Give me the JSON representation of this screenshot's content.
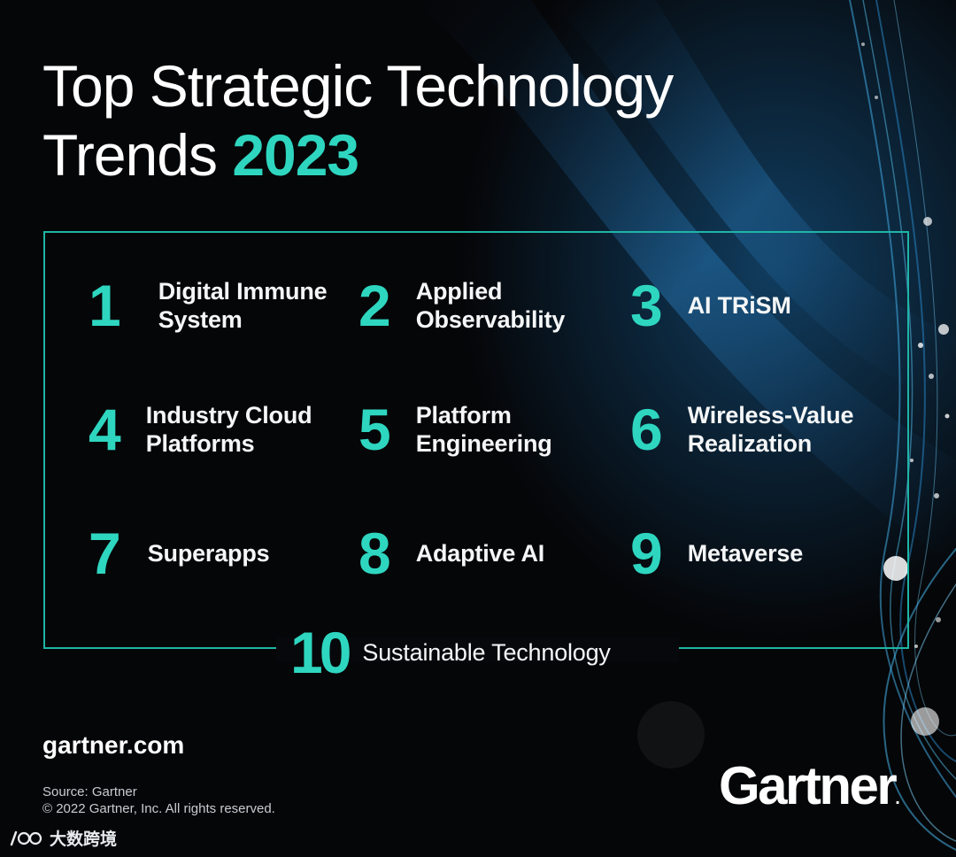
{
  "header": {
    "title_line1": "Top Strategic Technology",
    "title_line2_prefix": "Trends",
    "title_year": "2023"
  },
  "trends": [
    {
      "number": "1",
      "label_line1": "Digital Immune",
      "label_line2": "System"
    },
    {
      "number": "2",
      "label_line1": "Applied",
      "label_line2": "Observability"
    },
    {
      "number": "3",
      "label_line1": "AI TRiSM",
      "label_line2": ""
    },
    {
      "number": "4",
      "label_line1": "Industry Cloud",
      "label_line2": "Platforms"
    },
    {
      "number": "5",
      "label_line1": "Platform",
      "label_line2": "Engineering"
    },
    {
      "number": "6",
      "label_line1": "Wireless-Value",
      "label_line2": "Realization"
    },
    {
      "number": "7",
      "label_line1": "Superapps",
      "label_line2": ""
    },
    {
      "number": "8",
      "label_line1": "Adaptive AI",
      "label_line2": ""
    },
    {
      "number": "9",
      "label_line1": "Metaverse",
      "label_line2": ""
    },
    {
      "number": "10",
      "label_line1": "Sustainable Technology",
      "label_line2": ""
    }
  ],
  "footer": {
    "website": "gartner.com",
    "source": "Source: Gartner",
    "copyright": "© 2022 Gartner, Inc. All rights reserved.",
    "logo_text": "Gartner",
    "logo_mark": ".",
    "watermark_text": "大数跨境",
    "watermark_icon": "100-logo-icon"
  },
  "colors": {
    "background": "#050608",
    "accent_teal": "#2ed6c0",
    "frame_teal": "#1fb5a6",
    "text": "#ffffff"
  }
}
